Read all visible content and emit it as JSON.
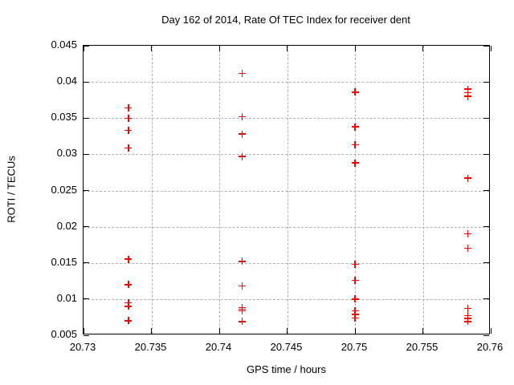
{
  "chart_data": {
    "type": "scatter",
    "title": "Day 162 of 2014, Rate Of TEC Index for receiver dent",
    "xlabel": "GPS time / hours",
    "ylabel": "ROTI / TECUs",
    "xlim": [
      20.73,
      20.76
    ],
    "ylim": [
      0.005,
      0.045
    ],
    "x_ticks": [
      20.73,
      20.735,
      20.74,
      20.745,
      20.75,
      20.755,
      20.76
    ],
    "x_tick_labels": [
      "20.73",
      "20.735",
      "20.74",
      "20.745",
      "20.75",
      "20.755",
      "20.76"
    ],
    "y_ticks": [
      0.005,
      0.01,
      0.015,
      0.02,
      0.025,
      0.03,
      0.035,
      0.04,
      0.045
    ],
    "y_tick_labels": [
      "0.005",
      "0.01",
      "0.015",
      "0.02",
      "0.025",
      "0.03",
      "0.035",
      "0.04",
      "0.045"
    ],
    "grid": true,
    "legend": "none",
    "marker_style": "plus",
    "colors": {
      "marker": "#ff0000",
      "grid": "#b0b0b0",
      "axis": "#000000",
      "background": "#ffffff",
      "text": "#000000"
    },
    "series": [
      {
        "name": "ROTI",
        "points": [
          [
            20.7333,
            0.0364
          ],
          [
            20.7333,
            0.035
          ],
          [
            20.7333,
            0.0333
          ],
          [
            20.7333,
            0.0309
          ],
          [
            20.7333,
            0.0155
          ],
          [
            20.7333,
            0.012
          ],
          [
            20.7333,
            0.0095
          ],
          [
            20.7333,
            0.009
          ],
          [
            20.7333,
            0.007
          ],
          [
            20.7417,
            0.0412
          ],
          [
            20.7417,
            0.0352
          ],
          [
            20.7417,
            0.0328
          ],
          [
            20.7417,
            0.0297
          ],
          [
            20.7417,
            0.0152
          ],
          [
            20.7417,
            0.0118
          ],
          [
            20.7417,
            0.0088
          ],
          [
            20.7417,
            0.0086
          ],
          [
            20.7417,
            0.0084
          ],
          [
            20.7417,
            0.0069
          ],
          [
            20.75,
            0.0386
          ],
          [
            20.75,
            0.0338
          ],
          [
            20.75,
            0.0313
          ],
          [
            20.75,
            0.0288
          ],
          [
            20.75,
            0.0148
          ],
          [
            20.75,
            0.0126
          ],
          [
            20.75,
            0.01
          ],
          [
            20.75,
            0.0084
          ],
          [
            20.75,
            0.0079
          ],
          [
            20.75,
            0.0074
          ],
          [
            20.7583,
            0.039
          ],
          [
            20.7583,
            0.0385
          ],
          [
            20.7583,
            0.038
          ],
          [
            20.7583,
            0.0267
          ],
          [
            20.7583,
            0.019
          ],
          [
            20.7583,
            0.017
          ],
          [
            20.7583,
            0.0087
          ],
          [
            20.7583,
            0.0077
          ],
          [
            20.7583,
            0.0073
          ],
          [
            20.7583,
            0.0069
          ]
        ]
      }
    ]
  }
}
